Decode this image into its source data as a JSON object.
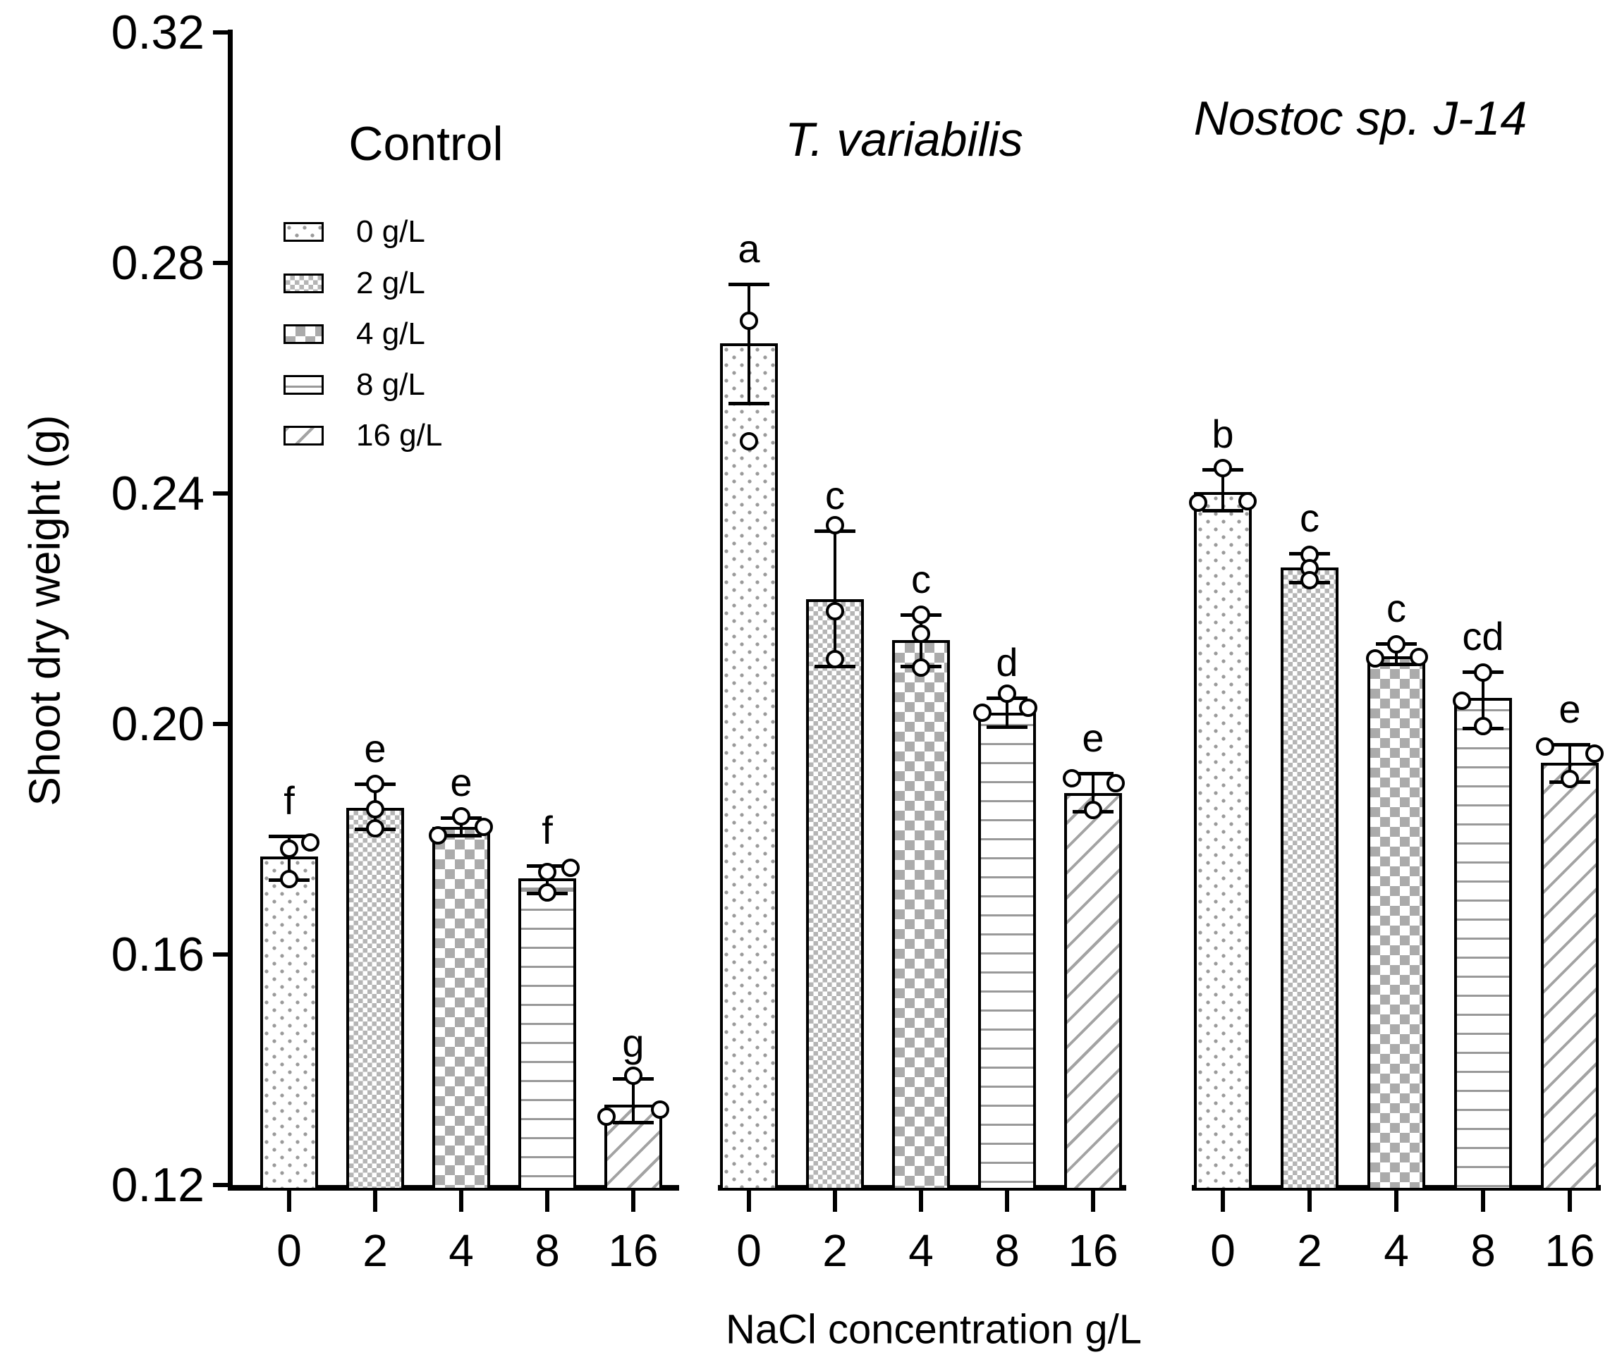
{
  "chart_data": {
    "type": "bar",
    "ylabel": "Shoot dry weight (g)",
    "xlabel": "NaCl concentration g/L",
    "ylim": [
      0.12,
      0.32
    ],
    "y_ticks": [
      "0.32",
      "0.28",
      "0.24",
      "0.20",
      "0.16",
      "0.12"
    ],
    "categories": [
      "0",
      "2",
      "4",
      "8",
      "16"
    ],
    "grid": false,
    "legend_position": "upper-left",
    "legend": [
      {
        "label": "0 g/L",
        "pattern": "dots"
      },
      {
        "label": "2 g/L",
        "pattern": "check-fine"
      },
      {
        "label": "4 g/L",
        "pattern": "check-coarse"
      },
      {
        "label": "8 g/L",
        "pattern": "hlines"
      },
      {
        "label": "16 g/L",
        "pattern": "diag"
      }
    ],
    "groups": [
      {
        "title": "Control",
        "italic": false,
        "bars": [
          {
            "category": "0",
            "pattern": "dots",
            "mean": 0.177,
            "err_low": 0.173,
            "err_high": 0.1805,
            "letter": "f",
            "points": [
              {
                "dx": 0,
                "v": 0.1783
              },
              {
                "dx": 30,
                "v": 0.1795
              },
              {
                "dx": 0,
                "v": 0.1731
              }
            ]
          },
          {
            "category": "2",
            "pattern": "check-fine",
            "mean": 0.1855,
            "err_low": 0.1818,
            "err_high": 0.1896,
            "letter": "e",
            "points": [
              {
                "dx": 0,
                "v": 0.1896
              },
              {
                "dx": 0,
                "v": 0.1852
              },
              {
                "dx": 0,
                "v": 0.1819
              }
            ]
          },
          {
            "category": "4",
            "pattern": "check-coarse",
            "mean": 0.1822,
            "err_low": 0.1807,
            "err_high": 0.1837,
            "letter": "e",
            "points": [
              {
                "dx": -33,
                "v": 0.1807
              },
              {
                "dx": 32,
                "v": 0.1821
              },
              {
                "dx": 0,
                "v": 0.184
              }
            ]
          },
          {
            "category": "8",
            "pattern": "hlines",
            "mean": 0.1732,
            "err_low": 0.1706,
            "err_high": 0.1754,
            "letter": "f",
            "points": [
              {
                "dx": 0,
                "v": 0.1743
              },
              {
                "dx": 33,
                "v": 0.175
              },
              {
                "dx": 0,
                "v": 0.1708
              }
            ]
          },
          {
            "category": "16",
            "pattern": "diag",
            "mean": 0.134,
            "err_low": 0.1309,
            "err_high": 0.1385,
            "letter": "g",
            "points": [
              {
                "dx": -38,
                "v": 0.1319
              },
              {
                "dx": 38,
                "v": 0.1331
              },
              {
                "dx": 0,
                "v": 0.139
              }
            ]
          }
        ]
      },
      {
        "title": "T. variabilis",
        "italic": true,
        "bars": [
          {
            "category": "0",
            "pattern": "dots",
            "mean": 0.266,
            "err_low": 0.2556,
            "err_high": 0.2763,
            "letter": "a",
            "points": [
              {
                "dx": 0,
                "v": 0.27
              },
              {
                "dx": 0,
                "v": 0.249
              }
            ]
          },
          {
            "category": "2",
            "pattern": "check-fine",
            "mean": 0.2217,
            "err_low": 0.21,
            "err_high": 0.2335,
            "letter": "c",
            "points": [
              {
                "dx": 0,
                "v": 0.2345
              },
              {
                "dx": 0,
                "v": 0.2196
              },
              {
                "dx": 0,
                "v": 0.2113
              }
            ]
          },
          {
            "category": "4",
            "pattern": "check-coarse",
            "mean": 0.2146,
            "err_low": 0.21,
            "err_high": 0.219,
            "letter": "c",
            "points": [
              {
                "dx": 0,
                "v": 0.219
              },
              {
                "dx": 0,
                "v": 0.2156
              },
              {
                "dx": 0,
                "v": 0.2098
              }
            ]
          },
          {
            "category": "8",
            "pattern": "hlines",
            "mean": 0.202,
            "err_low": 0.1995,
            "err_high": 0.2045,
            "letter": "d",
            "points": [
              {
                "dx": -35,
                "v": 0.2019
              },
              {
                "dx": 30,
                "v": 0.2028
              },
              {
                "dx": 0,
                "v": 0.2052
              }
            ]
          },
          {
            "category": "16",
            "pattern": "diag",
            "mean": 0.188,
            "err_low": 0.1848,
            "err_high": 0.1914,
            "letter": "e",
            "points": [
              {
                "dx": -30,
                "v": 0.1906
              },
              {
                "dx": 32,
                "v": 0.1897
              },
              {
                "dx": 0,
                "v": 0.1851
              }
            ]
          }
        ]
      },
      {
        "title": "Nostoc sp. J-14",
        "italic": true,
        "bars": [
          {
            "category": "0",
            "pattern": "dots",
            "mean": 0.2403,
            "err_low": 0.2371,
            "err_high": 0.2441,
            "letter": "b",
            "points": [
              {
                "dx": -35,
                "v": 0.2384
              },
              {
                "dx": 35,
                "v": 0.2386
              },
              {
                "dx": 0,
                "v": 0.2444
              }
            ]
          },
          {
            "category": "2",
            "pattern": "check-fine",
            "mean": 0.2271,
            "err_low": 0.2246,
            "err_high": 0.2296,
            "letter": "c",
            "points": [
              {
                "dx": 0,
                "v": 0.2293
              },
              {
                "dx": 0,
                "v": 0.227
              },
              {
                "dx": 0,
                "v": 0.2249
              }
            ]
          },
          {
            "category": "4",
            "pattern": "check-coarse",
            "mean": 0.2118,
            "err_low": 0.2104,
            "err_high": 0.214,
            "letter": "c",
            "points": [
              {
                "dx": -30,
                "v": 0.2114
              },
              {
                "dx": 32,
                "v": 0.2116
              },
              {
                "dx": 0,
                "v": 0.2138
              }
            ]
          },
          {
            "category": "8",
            "pattern": "hlines",
            "mean": 0.2045,
            "err_low": 0.1993,
            "err_high": 0.209,
            "letter": "cd",
            "points": [
              {
                "dx": -30,
                "v": 0.204
              },
              {
                "dx": 0,
                "v": 0.2089
              },
              {
                "dx": 0,
                "v": 0.1996
              }
            ]
          },
          {
            "category": "16",
            "pattern": "diag",
            "mean": 0.1933,
            "err_low": 0.19,
            "err_high": 0.1965,
            "letter": "e",
            "points": [
              {
                "dx": -35,
                "v": 0.1961
              },
              {
                "dx": 35,
                "v": 0.1949
              },
              {
                "dx": 0,
                "v": 0.1904
              }
            ]
          }
        ]
      }
    ]
  }
}
